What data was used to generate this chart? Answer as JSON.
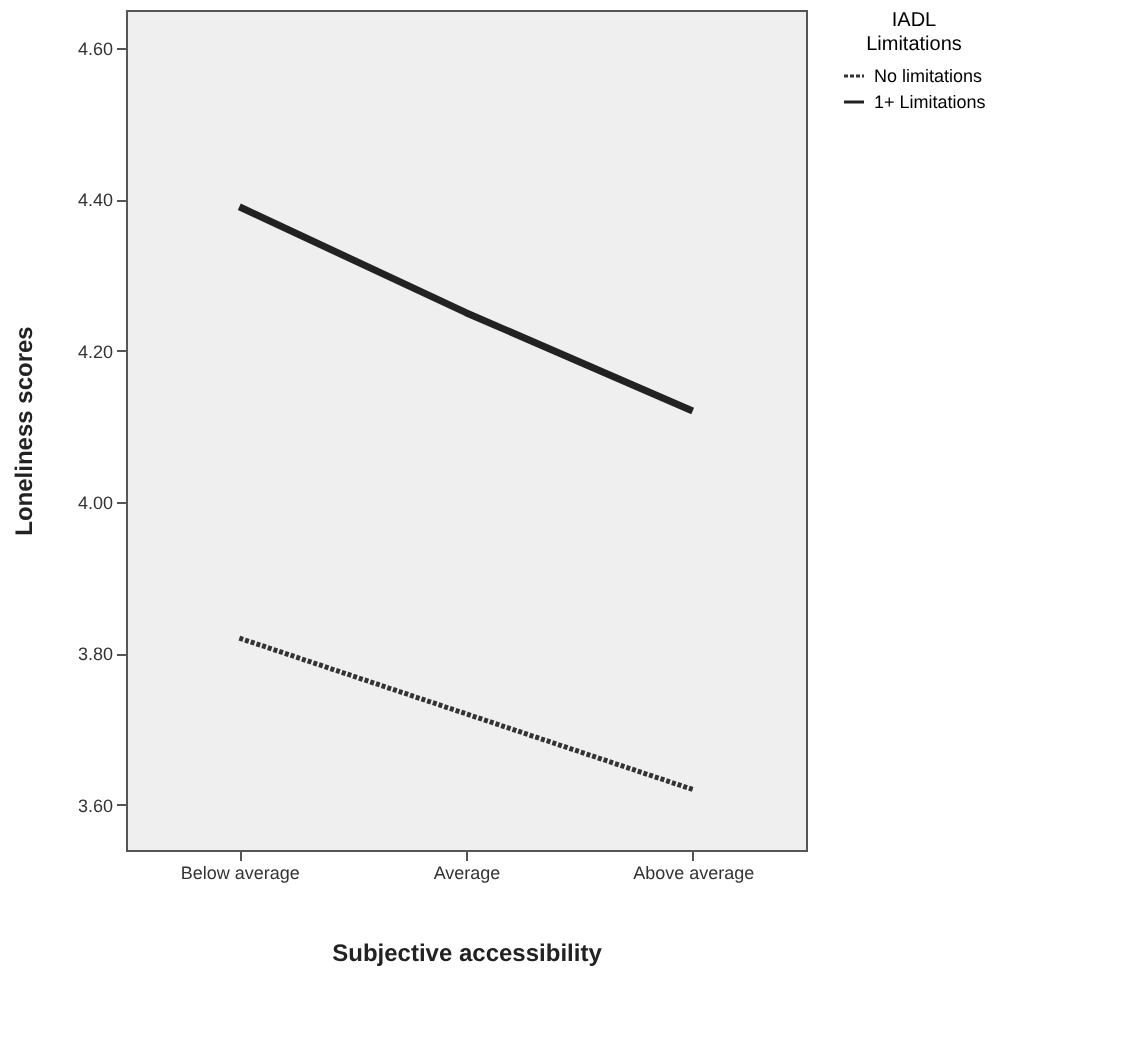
{
  "chart_data": {
    "type": "line",
    "xlabel": "Subjective accessibility",
    "ylabel": "Loneliness scores",
    "legend_title": "IADL Limitations",
    "categories": [
      "Below average",
      "Average",
      "Above average"
    ],
    "series": [
      {
        "name": "No limitations",
        "color": "#333333",
        "values": [
          3.82,
          3.72,
          3.62
        ],
        "line_style": "dotted"
      },
      {
        "name": "1+ Limitations",
        "color": "#222222",
        "values": [
          4.39,
          4.25,
          4.12
        ],
        "line_style": "solid"
      }
    ],
    "ylim": [
      3.54,
      4.65
    ],
    "yticks": [
      {
        "value": 3.6,
        "label": "3.60"
      },
      {
        "value": 3.8,
        "label": "3.80"
      },
      {
        "value": 4.0,
        "label": "4.00"
      },
      {
        "value": 4.2,
        "label": "4.20"
      },
      {
        "value": 4.4,
        "label": "4.40"
      },
      {
        "value": 4.6,
        "label": "4.60"
      }
    ],
    "grid": false,
    "legend": "top right"
  }
}
